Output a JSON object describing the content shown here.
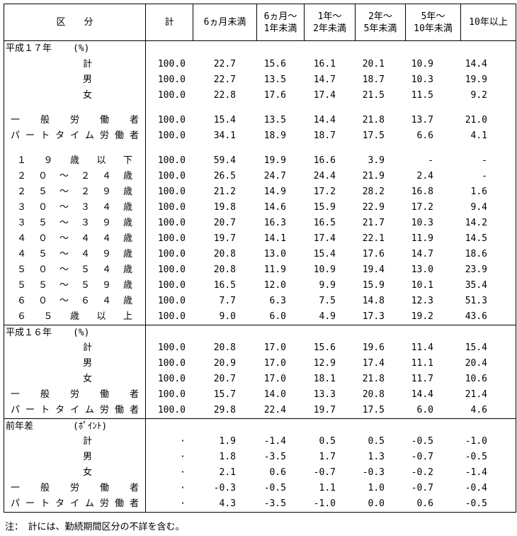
{
  "table": {
    "columns": [
      "区　　分",
      "計",
      "6ヵ月未満",
      "6ヵ月～\n1年未満",
      "1年～\n2年未満",
      "2年～\n5年未満",
      "5年～\n10年未満",
      "10年以上"
    ],
    "rows": [
      {
        "type": "section",
        "label": "平成１７年",
        "unit": "(%)"
      },
      {
        "type": "data",
        "align": "center",
        "label": "計",
        "values": [
          "100.0",
          "22.7",
          "15.6",
          "16.1",
          "20.1",
          "10.9",
          "14.4"
        ]
      },
      {
        "type": "data",
        "align": "center",
        "label": "男",
        "values": [
          "100.0",
          "22.7",
          "13.5",
          "14.7",
          "18.7",
          "10.3",
          "19.9"
        ]
      },
      {
        "type": "data",
        "align": "center",
        "label": "女",
        "values": [
          "100.0",
          "22.8",
          "17.6",
          "17.4",
          "21.5",
          "11.5",
          "9.2"
        ]
      },
      {
        "type": "spacer"
      },
      {
        "type": "data",
        "align": "justify",
        "label": "一般労働者",
        "values": [
          "100.0",
          "15.4",
          "13.5",
          "14.4",
          "21.8",
          "13.7",
          "21.0"
        ]
      },
      {
        "type": "data",
        "align": "justify",
        "label": "パートタイム労働者",
        "values": [
          "100.0",
          "34.1",
          "18.9",
          "18.7",
          "17.5",
          "6.6",
          "4.1"
        ]
      },
      {
        "type": "spacer"
      },
      {
        "type": "data",
        "align": "justify-age",
        "label": "１９歳以下",
        "values": [
          "100.0",
          "59.4",
          "19.9",
          "16.6",
          "3.9",
          "-",
          "-"
        ]
      },
      {
        "type": "data",
        "align": "justify-age",
        "label": "２０～２４歳",
        "values": [
          "100.0",
          "26.5",
          "24.7",
          "24.4",
          "21.9",
          "2.4",
          "-"
        ]
      },
      {
        "type": "data",
        "align": "justify-age",
        "label": "２５～２９歳",
        "values": [
          "100.0",
          "21.2",
          "14.9",
          "17.2",
          "28.2",
          "16.8",
          "1.6"
        ]
      },
      {
        "type": "data",
        "align": "justify-age",
        "label": "３０～３４歳",
        "values": [
          "100.0",
          "19.8",
          "14.6",
          "15.9",
          "22.9",
          "17.2",
          "9.4"
        ]
      },
      {
        "type": "data",
        "align": "justify-age",
        "label": "３５～３９歳",
        "values": [
          "100.0",
          "20.7",
          "16.3",
          "16.5",
          "21.7",
          "10.3",
          "14.2"
        ]
      },
      {
        "type": "data",
        "align": "justify-age",
        "label": "４０～４４歳",
        "values": [
          "100.0",
          "19.7",
          "14.1",
          "17.4",
          "22.1",
          "11.9",
          "14.5"
        ]
      },
      {
        "type": "data",
        "align": "justify-age",
        "label": "４５～４９歳",
        "values": [
          "100.0",
          "20.8",
          "13.0",
          "15.4",
          "17.6",
          "14.7",
          "18.6"
        ]
      },
      {
        "type": "data",
        "align": "justify-age",
        "label": "５０～５４歳",
        "values": [
          "100.0",
          "20.8",
          "11.9",
          "10.9",
          "19.4",
          "13.0",
          "23.9"
        ]
      },
      {
        "type": "data",
        "align": "justify-age",
        "label": "５５～５９歳",
        "values": [
          "100.0",
          "16.5",
          "12.0",
          "9.9",
          "15.9",
          "10.1",
          "35.4"
        ]
      },
      {
        "type": "data",
        "align": "justify-age",
        "label": "６０～６４歳",
        "values": [
          "100.0",
          "7.7",
          "6.3",
          "7.5",
          "14.8",
          "12.3",
          "51.3"
        ]
      },
      {
        "type": "data",
        "align": "justify-age",
        "label": "６５歳以上",
        "values": [
          "100.0",
          "9.0",
          "6.0",
          "4.9",
          "17.3",
          "19.2",
          "43.6"
        ]
      },
      {
        "type": "section",
        "rule": true,
        "label": "平成１６年",
        "unit": "(%)"
      },
      {
        "type": "data",
        "align": "center",
        "label": "計",
        "values": [
          "100.0",
          "20.8",
          "17.0",
          "15.6",
          "19.6",
          "11.4",
          "15.4"
        ]
      },
      {
        "type": "data",
        "align": "center",
        "label": "男",
        "values": [
          "100.0",
          "20.9",
          "17.0",
          "12.9",
          "17.4",
          "11.1",
          "20.4"
        ]
      },
      {
        "type": "data",
        "align": "center",
        "label": "女",
        "values": [
          "100.0",
          "20.7",
          "17.0",
          "18.1",
          "21.8",
          "11.7",
          "10.6"
        ]
      },
      {
        "type": "data",
        "align": "justify",
        "label": "一般労働者",
        "values": [
          "100.0",
          "15.7",
          "14.0",
          "13.3",
          "20.8",
          "14.4",
          "21.4"
        ]
      },
      {
        "type": "data",
        "align": "justify",
        "label": "パートタイム労働者",
        "values": [
          "100.0",
          "29.8",
          "22.4",
          "19.7",
          "17.5",
          "6.0",
          "4.6"
        ]
      },
      {
        "type": "section",
        "rule": true,
        "label": "前年差",
        "unit": "(ﾎﾟｲﾝﾄ)"
      },
      {
        "type": "data",
        "align": "center",
        "label": "計",
        "values": [
          "·",
          "1.9",
          "-1.4",
          "0.5",
          "0.5",
          "-0.5",
          "-1.0"
        ]
      },
      {
        "type": "data",
        "align": "center",
        "label": "男",
        "values": [
          "·",
          "1.8",
          "-3.5",
          "1.7",
          "1.3",
          "-0.7",
          "-0.5"
        ]
      },
      {
        "type": "data",
        "align": "center",
        "label": "女",
        "values": [
          "·",
          "2.1",
          "0.6",
          "-0.7",
          "-0.3",
          "-0.2",
          "-1.4"
        ]
      },
      {
        "type": "data",
        "align": "justify",
        "label": "一般労働者",
        "values": [
          "·",
          "-0.3",
          "-0.5",
          "1.1",
          "1.0",
          "-0.7",
          "-0.4"
        ]
      },
      {
        "type": "data",
        "align": "justify",
        "label": "パートタイム労働者",
        "values": [
          "·",
          "4.3",
          "-3.5",
          "-1.0",
          "0.0",
          "0.6",
          "-0.5"
        ]
      }
    ]
  },
  "note": "注：　計には、勤続期間区分の不詳を含む。"
}
